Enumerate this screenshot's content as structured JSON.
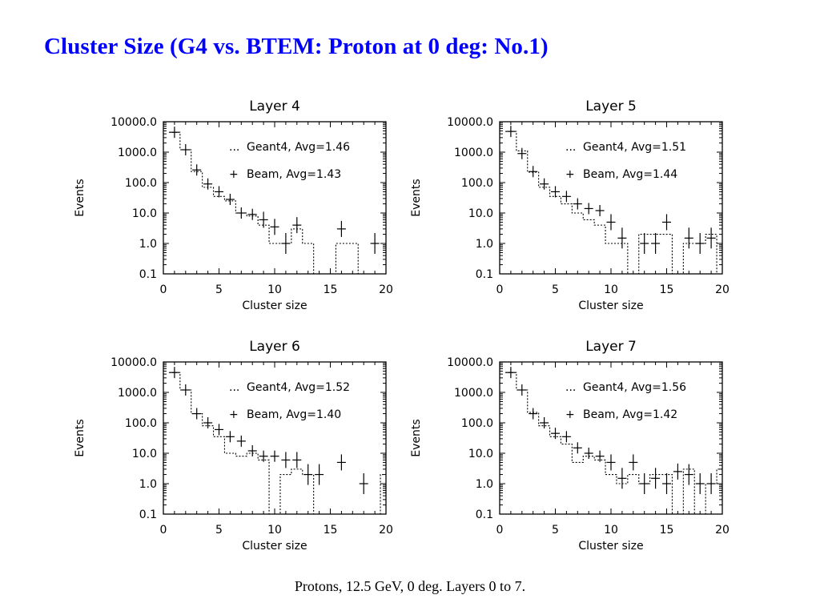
{
  "page": {
    "title": "Cluster Size (G4 vs. BTEM: Proton at 0 deg: No.1)",
    "caption": "Protons, 12.5 GeV, 0 deg. Layers 0 to 7.",
    "title_color": "#0000ff"
  },
  "chart_data": [
    {
      "type": "line",
      "title": "Layer 4",
      "xlabel": "Cluster size",
      "ylabel": "Events",
      "xlim": [
        0,
        20
      ],
      "ylim": [
        0.1,
        10000.0
      ],
      "yscale": "log",
      "xticks": [
        "0",
        "5",
        "10",
        "15",
        "20"
      ],
      "yticks": [
        "10000.0",
        "1000.0",
        "100.0",
        "10.0",
        "1.0",
        "0.1"
      ],
      "series": [
        {
          "name": "Geant4, Avg=1.46",
          "legend_symbol": "...",
          "style": "dotted-histogram",
          "x": [
            1,
            2,
            3,
            4,
            5,
            6,
            7,
            8,
            9,
            10,
            11,
            12,
            13,
            14,
            15,
            16,
            17,
            18,
            19,
            20
          ],
          "values": [
            4500,
            1200,
            230,
            70,
            35,
            25,
            10,
            8,
            4,
            1.0,
            1.0,
            3,
            1.0,
            0.1,
            0.1,
            1.0,
            1.0,
            0.1,
            0.1,
            0.1
          ]
        },
        {
          "name": "Beam, Avg=1.43",
          "legend_symbol": "+",
          "style": "cross",
          "x": [
            1,
            2,
            3,
            4,
            5,
            6,
            7,
            8,
            9,
            10,
            11,
            12,
            16,
            19
          ],
          "values": [
            4500,
            1200,
            260,
            90,
            50,
            28,
            10,
            9,
            6,
            3.5,
            1.0,
            4,
            3,
            1.0
          ]
        }
      ]
    },
    {
      "type": "line",
      "title": "Layer 5",
      "xlabel": "Cluster size",
      "ylabel": "Events",
      "xlim": [
        0,
        20
      ],
      "ylim": [
        0.1,
        10000.0
      ],
      "yscale": "log",
      "xticks": [
        "0",
        "5",
        "10",
        "15",
        "20"
      ],
      "yticks": [
        "10000.0",
        "1000.0",
        "100.0",
        "10.0",
        "1.0",
        "0.1"
      ],
      "series": [
        {
          "name": "Geant4, Avg=1.51",
          "legend_symbol": "...",
          "style": "dotted-histogram",
          "x": [
            1,
            2,
            3,
            4,
            5,
            6,
            7,
            8,
            9,
            10,
            11,
            12,
            13,
            14,
            15,
            16,
            17,
            18,
            19,
            20
          ],
          "values": [
            4800,
            1100,
            220,
            70,
            35,
            20,
            10,
            6,
            4,
            1.0,
            1.0,
            0.1,
            2,
            2,
            2,
            0.1,
            1.0,
            1.0,
            2,
            0.1
          ]
        },
        {
          "name": "Beam, Avg=1.44",
          "legend_symbol": "+",
          "style": "cross",
          "x": [
            1,
            2,
            3,
            4,
            5,
            6,
            7,
            8,
            9,
            10,
            11,
            13,
            14,
            15,
            17,
            18,
            19
          ],
          "values": [
            4800,
            900,
            230,
            90,
            50,
            35,
            20,
            14,
            12,
            5,
            1.5,
            1.0,
            1.0,
            5,
            1.5,
            1.0,
            1.5
          ]
        }
      ]
    },
    {
      "type": "line",
      "title": "Layer 6",
      "xlabel": "Cluster size",
      "ylabel": "Events",
      "xlim": [
        0,
        20
      ],
      "ylim": [
        0.1,
        10000.0
      ],
      "yscale": "log",
      "xticks": [
        "0",
        "5",
        "10",
        "15",
        "20"
      ],
      "yticks": [
        "10000.0",
        "1000.0",
        "100.0",
        "10.0",
        "1.0",
        "0.1"
      ],
      "series": [
        {
          "name": "Geant4, Avg=1.52",
          "legend_symbol": "...",
          "style": "dotted-histogram",
          "x": [
            1,
            2,
            3,
            4,
            5,
            6,
            7,
            8,
            9,
            10,
            11,
            12,
            13,
            14,
            15,
            16,
            17,
            18,
            19,
            20
          ],
          "values": [
            4500,
            1200,
            200,
            80,
            35,
            10,
            8,
            10,
            6,
            0.1,
            2,
            3,
            2,
            0.1,
            0.1,
            0.1,
            0.1,
            0.1,
            0.1,
            2
          ]
        },
        {
          "name": "Beam, Avg=1.40",
          "legend_symbol": "+",
          "style": "cross",
          "x": [
            1,
            2,
            3,
            4,
            5,
            6,
            7,
            8,
            9,
            10,
            11,
            12,
            13,
            14,
            16,
            18
          ],
          "values": [
            4500,
            1200,
            200,
            100,
            60,
            35,
            25,
            12,
            8,
            8,
            6,
            6,
            2,
            2,
            5,
            1.0
          ]
        }
      ]
    },
    {
      "type": "line",
      "title": "Layer 7",
      "xlabel": "Cluster size",
      "ylabel": "Events",
      "xlim": [
        0,
        20
      ],
      "ylim": [
        0.1,
        10000.0
      ],
      "yscale": "log",
      "xticks": [
        "0",
        "5",
        "10",
        "15",
        "20"
      ],
      "yticks": [
        "10000.0",
        "1000.0",
        "100.0",
        "10.0",
        "1.0",
        "0.1"
      ],
      "series": [
        {
          "name": "Geant4, Avg=1.56",
          "legend_symbol": "...",
          "style": "dotted-histogram",
          "x": [
            1,
            2,
            3,
            4,
            5,
            6,
            7,
            8,
            9,
            10,
            11,
            12,
            13,
            14,
            15,
            16,
            17,
            18,
            19,
            20
          ],
          "values": [
            4500,
            1200,
            220,
            80,
            35,
            20,
            5,
            8,
            6,
            2,
            1.0,
            2,
            1.0,
            2,
            2,
            0.1,
            3,
            0.1,
            1.0,
            3
          ]
        },
        {
          "name": "Beam, Avg=1.42",
          "legend_symbol": "+",
          "style": "cross",
          "x": [
            1,
            2,
            3,
            4,
            5,
            6,
            7,
            8,
            9,
            10,
            11,
            12,
            13,
            14,
            15,
            16,
            17,
            18,
            19
          ],
          "values": [
            4500,
            1200,
            200,
            100,
            45,
            35,
            15,
            10,
            8,
            5,
            1.5,
            5,
            1.0,
            1.5,
            1.0,
            2.5,
            2,
            1.0,
            1.0
          ]
        }
      ]
    }
  ]
}
